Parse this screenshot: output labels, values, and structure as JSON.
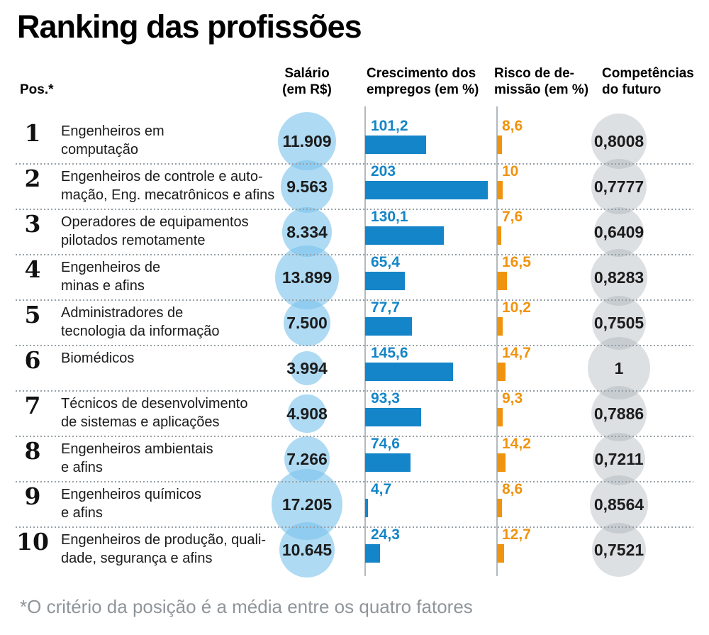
{
  "title": "Ranking das profissões",
  "columns": {
    "pos": "Pos.*",
    "salary": [
      "Salário",
      "(em R$)"
    ],
    "growth": [
      "Crescimento dos",
      "empregos (em %)"
    ],
    "risk": [
      "Risco de de-",
      "missão (em %)"
    ],
    "skills": [
      "Competências",
      "do futuro"
    ]
  },
  "footnote": "*O critério da posição é a média entre os quatro fatores",
  "colors": {
    "growth_bar": "#1485c8",
    "risk_bar": "#f0930f",
    "salary_bubble": "rgba(125,196,236,0.62)",
    "skills_bubble": "rgba(160,170,178,0.36)",
    "axis_line": "#b3b9be",
    "separator_dots": "#98a0a6",
    "footnote_text": "#8f959a"
  },
  "chart_data": {
    "type": "table",
    "title": "Ranking das profissões",
    "footnote": "*O critério da posição é a média entre os quatro fatores",
    "legend_position": "none",
    "grid": "dotted-row-separators",
    "columns": [
      {
        "key": "pos",
        "label": "Pos.*",
        "encoding": "text"
      },
      {
        "key": "salary",
        "label": "Salário (em R$)",
        "encoding": "bubble-size",
        "color": "rgba(125,196,236,0.62)"
      },
      {
        "key": "growth",
        "label": "Crescimento dos empregos (em %)",
        "encoding": "bar",
        "color": "#1485c8",
        "xlim": [
          0,
          210
        ]
      },
      {
        "key": "risk",
        "label": "Risco de demissão (em %)",
        "encoding": "bar",
        "color": "#f0930f",
        "xlim": [
          0,
          20
        ]
      },
      {
        "key": "skills",
        "label": "Competências do futuro",
        "encoding": "bubble-size",
        "color": "rgba(160,170,178,0.36)"
      }
    ],
    "rows": [
      {
        "pos": "1",
        "name": "Engenheiros em computação",
        "name_lines": [
          "Engenheiros em",
          "computação"
        ],
        "salary": "11.909",
        "salary_value": 11909,
        "growth": "101,2",
        "growth_value": 101.2,
        "risk": "8,6",
        "risk_value": 8.6,
        "skills": "0,8008",
        "skills_value": 0.8008
      },
      {
        "pos": "2",
        "name": "Engenheiros de controle e automação, Eng. mecatrônicos e afins",
        "name_lines": [
          "Engenheiros de controle e auto-",
          "mação, Eng. mecatrônicos e afins"
        ],
        "salary": "9.563",
        "salary_value": 9563,
        "growth": "203",
        "growth_value": 203,
        "risk": "10",
        "risk_value": 10,
        "skills": "0,7777",
        "skills_value": 0.7777
      },
      {
        "pos": "3",
        "name": "Operadores de equipamentos pilotados remotamente",
        "name_lines": [
          "Operadores de equipamentos",
          "pilotados remotamente"
        ],
        "salary": "8.334",
        "salary_value": 8334,
        "growth": "130,1",
        "growth_value": 130.1,
        "risk": "7,6",
        "risk_value": 7.6,
        "skills": "0,6409",
        "skills_value": 0.6409
      },
      {
        "pos": "4",
        "name": "Engenheiros de minas e afins",
        "name_lines": [
          "Engenheiros de",
          "minas e afins"
        ],
        "salary": "13.899",
        "salary_value": 13899,
        "growth": "65,4",
        "growth_value": 65.4,
        "risk": "16,5",
        "risk_value": 16.5,
        "skills": "0,8283",
        "skills_value": 0.8283
      },
      {
        "pos": "5",
        "name": "Administradores de tecnologia da informação",
        "name_lines": [
          "Administradores de",
          "tecnologia da informação"
        ],
        "salary": "7.500",
        "salary_value": 7500,
        "growth": "77,7",
        "growth_value": 77.7,
        "risk": "10,2",
        "risk_value": 10.2,
        "skills": "0,7505",
        "skills_value": 0.7505
      },
      {
        "pos": "6",
        "name": "Biomédicos",
        "name_lines": [
          "Biomédicos"
        ],
        "salary": "3.994",
        "salary_value": 3994,
        "growth": "145,6",
        "growth_value": 145.6,
        "risk": "14,7",
        "risk_value": 14.7,
        "skills": "1",
        "skills_value": 1
      },
      {
        "pos": "7",
        "name": "Técnicos de desenvolvimento de sistemas e aplicações",
        "name_lines": [
          "Técnicos de desenvolvimento",
          "de sistemas e aplicações"
        ],
        "salary": "4.908",
        "salary_value": 4908,
        "growth": "93,3",
        "growth_value": 93.3,
        "risk": "9,3",
        "risk_value": 9.3,
        "skills": "0,7886",
        "skills_value": 0.7886
      },
      {
        "pos": "8",
        "name": "Engenheiros ambientais e afins",
        "name_lines": [
          "Engenheiros ambientais",
          "e afins"
        ],
        "salary": "7.266",
        "salary_value": 7266,
        "growth": "74,6",
        "growth_value": 74.6,
        "risk": "14,2",
        "risk_value": 14.2,
        "skills": "0,7211",
        "skills_value": 0.7211
      },
      {
        "pos": "9",
        "name": "Engenheiros químicos e afins",
        "name_lines": [
          "Engenheiros químicos",
          "e afins"
        ],
        "salary": "17.205",
        "salary_value": 17205,
        "growth": "4,7",
        "growth_value": 4.7,
        "risk": "8,6",
        "risk_value": 8.6,
        "skills": "0,8564",
        "skills_value": 0.8564
      },
      {
        "pos": "10",
        "name": "Engenheiros de produção, qualidade, segurança e afins",
        "name_lines": [
          "Engenheiros de produção, quali-",
          "dade, segurança e afins"
        ],
        "salary": "10.645",
        "salary_value": 10645,
        "growth": "24,3",
        "growth_value": 24.3,
        "risk": "12,7",
        "risk_value": 12.7,
        "skills": "0,7521",
        "skills_value": 0.7521
      }
    ]
  }
}
